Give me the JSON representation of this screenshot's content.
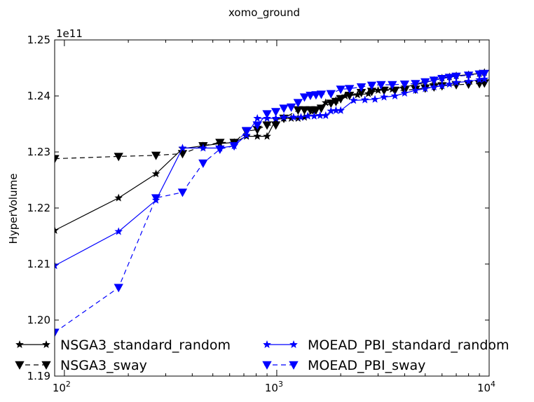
{
  "chart_data": {
    "type": "line",
    "title": "xomo_ground",
    "xlabel": "",
    "ylabel": "HyperVolume",
    "x_scale": "log",
    "xlim": [
      90,
      10000
    ],
    "ylim": [
      1.19,
      1.25
    ],
    "y_multiplier_label": "1e11",
    "x_ticks": [
      {
        "value": 100,
        "base": "10",
        "exp": "2"
      },
      {
        "value": 1000,
        "base": "10",
        "exp": "3"
      },
      {
        "value": 10000,
        "base": "10",
        "exp": "4"
      }
    ],
    "y_ticks": [
      {
        "value": 1.19,
        "label": "1.19"
      },
      {
        "value": 1.2,
        "label": "1.20"
      },
      {
        "value": 1.21,
        "label": "1.21"
      },
      {
        "value": 1.22,
        "label": "1.22"
      },
      {
        "value": 1.23,
        "label": "1.23"
      },
      {
        "value": 1.24,
        "label": "1.24"
      },
      {
        "value": 1.25,
        "label": "1.25"
      }
    ],
    "grid": false,
    "legend_position": "lower-center",
    "series": [
      {
        "name": "NSGA3_standard_random",
        "color": "#000000",
        "dash": "solid",
        "marker": "star",
        "points": [
          [
            90,
            1.216
          ],
          [
            180,
            1.2218
          ],
          [
            270,
            1.2261
          ],
          [
            360,
            1.2306
          ],
          [
            450,
            1.2311
          ],
          [
            540,
            1.2315
          ],
          [
            630,
            1.2317
          ],
          [
            720,
            1.2328
          ],
          [
            810,
            1.2328
          ],
          [
            900,
            1.2328
          ],
          [
            990,
            1.2358
          ],
          [
            1080,
            1.236
          ],
          [
            1170,
            1.236
          ],
          [
            1260,
            1.236
          ],
          [
            1350,
            1.2362
          ],
          [
            1500,
            1.2373
          ],
          [
            1700,
            1.2388
          ],
          [
            1900,
            1.2392
          ],
          [
            2100,
            1.24
          ],
          [
            2400,
            1.2402
          ],
          [
            2700,
            1.2404
          ],
          [
            3000,
            1.241
          ],
          [
            3500,
            1.2412
          ],
          [
            4000,
            1.2416
          ],
          [
            4500,
            1.242
          ],
          [
            5000,
            1.2424
          ],
          [
            5500,
            1.2428
          ],
          [
            6000,
            1.2432
          ],
          [
            6500,
            1.2434
          ],
          [
            7000,
            1.2436
          ],
          [
            8000,
            1.2438
          ],
          [
            9000,
            1.244
          ],
          [
            9500,
            1.2442
          ]
        ]
      },
      {
        "name": "NSGA3_sway",
        "color": "#000000",
        "dash": "dashed",
        "marker": "triangle-down",
        "points": [
          [
            90,
            1.2288
          ],
          [
            180,
            1.2292
          ],
          [
            270,
            1.2294
          ],
          [
            360,
            1.2297
          ],
          [
            450,
            1.2311
          ],
          [
            540,
            1.2317
          ],
          [
            630,
            1.2317
          ],
          [
            720,
            1.2337
          ],
          [
            810,
            1.234
          ],
          [
            900,
            1.2348
          ],
          [
            990,
            1.2348
          ],
          [
            1080,
            1.236
          ],
          [
            1260,
            1.2375
          ],
          [
            1350,
            1.2375
          ],
          [
            1440,
            1.2375
          ],
          [
            1530,
            1.2375
          ],
          [
            1620,
            1.2378
          ],
          [
            1800,
            1.2387
          ],
          [
            1900,
            1.239
          ],
          [
            2000,
            1.2395
          ],
          [
            2200,
            1.2401
          ],
          [
            2500,
            1.2406
          ],
          [
            2800,
            1.2408
          ],
          [
            3200,
            1.241
          ],
          [
            3600,
            1.241
          ],
          [
            4000,
            1.241
          ],
          [
            4500,
            1.2412
          ],
          [
            5000,
            1.2414
          ],
          [
            5500,
            1.2416
          ],
          [
            6000,
            1.2418
          ],
          [
            7000,
            1.242
          ],
          [
            8000,
            1.2421
          ],
          [
            9000,
            1.2422
          ],
          [
            9500,
            1.2423
          ]
        ]
      },
      {
        "name": "MOEAD_PBI_standard_random",
        "color": "#0000ff",
        "dash": "solid",
        "marker": "star",
        "points": [
          [
            90,
            1.2097
          ],
          [
            180,
            1.2158
          ],
          [
            270,
            1.2214
          ],
          [
            360,
            1.2307
          ],
          [
            450,
            1.2307
          ],
          [
            540,
            1.2307
          ],
          [
            630,
            1.2311
          ],
          [
            720,
            1.233
          ],
          [
            810,
            1.236
          ],
          [
            900,
            1.236
          ],
          [
            990,
            1.236
          ],
          [
            1080,
            1.2362
          ],
          [
            1200,
            1.2362
          ],
          [
            1300,
            1.2362
          ],
          [
            1400,
            1.2364
          ],
          [
            1500,
            1.2364
          ],
          [
            1600,
            1.2365
          ],
          [
            1700,
            1.2365
          ],
          [
            1800,
            1.2373
          ],
          [
            1900,
            1.2374
          ],
          [
            2000,
            1.2374
          ],
          [
            2300,
            1.2392
          ],
          [
            2600,
            1.2393
          ],
          [
            2900,
            1.2394
          ],
          [
            3200,
            1.2398
          ],
          [
            3600,
            1.24
          ],
          [
            4000,
            1.2405
          ],
          [
            4500,
            1.241
          ],
          [
            5000,
            1.2413
          ],
          [
            5500,
            1.2416
          ],
          [
            6000,
            1.2418
          ],
          [
            6500,
            1.2421
          ],
          [
            7000,
            1.2424
          ],
          [
            8000,
            1.2426
          ],
          [
            9000,
            1.2429
          ],
          [
            9500,
            1.243
          ]
        ]
      },
      {
        "name": "MOEAD_PBI_sway",
        "color": "#0000ff",
        "dash": "dashed",
        "marker": "triangle-down",
        "points": [
          [
            90,
            1.1978
          ],
          [
            180,
            1.2058
          ],
          [
            270,
            1.2218
          ],
          [
            360,
            1.2228
          ],
          [
            450,
            1.228
          ],
          [
            540,
            1.2305
          ],
          [
            630,
            1.2311
          ],
          [
            720,
            1.2338
          ],
          [
            810,
            1.2348
          ],
          [
            900,
            1.2368
          ],
          [
            990,
            1.2372
          ],
          [
            1080,
            1.2378
          ],
          [
            1170,
            1.238
          ],
          [
            1260,
            1.2388
          ],
          [
            1350,
            1.2398
          ],
          [
            1440,
            1.2401
          ],
          [
            1530,
            1.2402
          ],
          [
            1620,
            1.2403
          ],
          [
            1800,
            1.2404
          ],
          [
            2000,
            1.2412
          ],
          [
            2200,
            1.2413
          ],
          [
            2500,
            1.2416
          ],
          [
            2800,
            1.2419
          ],
          [
            3100,
            1.242
          ],
          [
            3500,
            1.242
          ],
          [
            4000,
            1.2421
          ],
          [
            4500,
            1.2422
          ],
          [
            5000,
            1.2425
          ],
          [
            5500,
            1.2428
          ],
          [
            6000,
            1.2431
          ],
          [
            6500,
            1.2433
          ],
          [
            7000,
            1.2435
          ],
          [
            8000,
            1.2437
          ],
          [
            9000,
            1.2439
          ],
          [
            9500,
            1.244
          ]
        ]
      }
    ]
  }
}
